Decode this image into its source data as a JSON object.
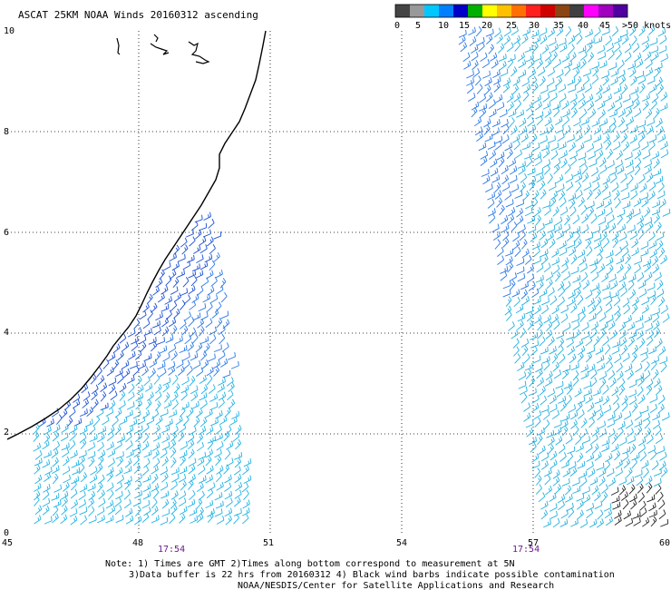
{
  "header": {
    "title": "ASCAT 25KM NOAA Winds 20160312 ascending"
  },
  "legend": {
    "labels": [
      "0",
      "5",
      "10",
      "15",
      "20",
      "25",
      "30",
      "35",
      "40",
      "45",
      ">50 knots"
    ],
    "colors": [
      "#444444",
      "#999999",
      "#00c8ff",
      "#0080ff",
      "#0000c8",
      "#00b000",
      "#ffff00",
      "#ffc000",
      "#ff7000",
      "#ff2020",
      "#d00000",
      "#8b4513",
      "#404040",
      "#ff00ff",
      "#a000c0",
      "#5000a0"
    ]
  },
  "map": {
    "lon_labels": [
      "45",
      "48",
      "51",
      "54",
      "57",
      "60"
    ],
    "lat_labels": [
      "0",
      "2",
      "4",
      "6",
      "8",
      "10"
    ],
    "lon_range": [
      45,
      60
    ],
    "lat_range": [
      0,
      10
    ],
    "pass_times": [
      {
        "label": "17:54",
        "lon": 49.0
      },
      {
        "label": "17:54",
        "lon": 56.8
      }
    ]
  },
  "footer": {
    "note_line1": "Note: 1) Times are GMT 2)Times along bottom correspond to measurement at 5N",
    "note_line2": "3)Data buffer is 22 hrs from 20160312 4) Black wind barbs indicate possible contamination",
    "credit": "NOAA/NESDIS/Center for Satellite Applications and Research"
  }
}
